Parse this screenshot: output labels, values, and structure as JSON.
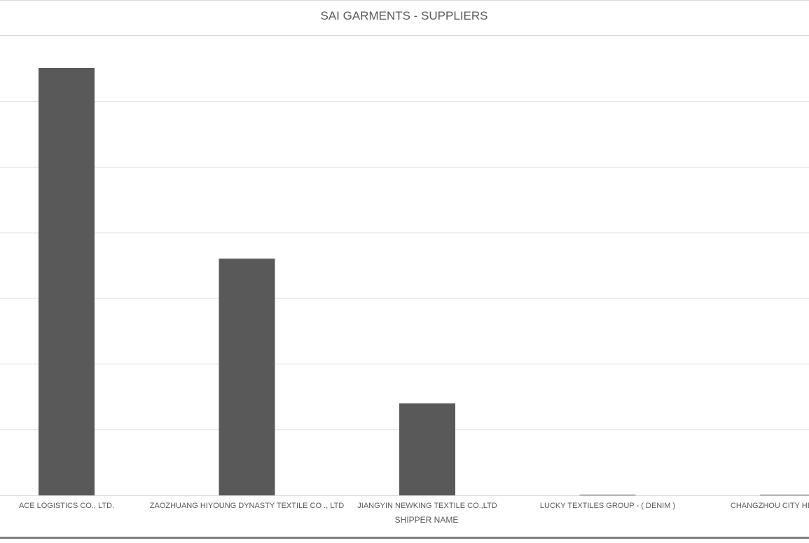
{
  "chart_data": {
    "type": "bar",
    "title": "SAI GARMENTS - SUPPLIERS",
    "xlabel": "SHIPPER NAME",
    "ylabel": "",
    "categories": [
      "ACE LOGISTICS CO., LTD.",
      "ZAOZHUANG HIYOUNG DYNASTY TEXTILE CO ., LTD",
      "JIANGYIN NEWKING TEXTILE CO.,LTD",
      "LUCKY TEXTILES GROUP - ( DENIM )",
      "CHANGZHOU CITY HENGFENG"
    ],
    "values": [
      6.5,
      3.6,
      1.4,
      0.01,
      0.01
    ],
    "ylim": [
      0,
      7
    ],
    "grid": true,
    "legend": "none",
    "bar_color": "#595959",
    "grid_color": "#d9d9d9",
    "text_color": "#595959"
  }
}
